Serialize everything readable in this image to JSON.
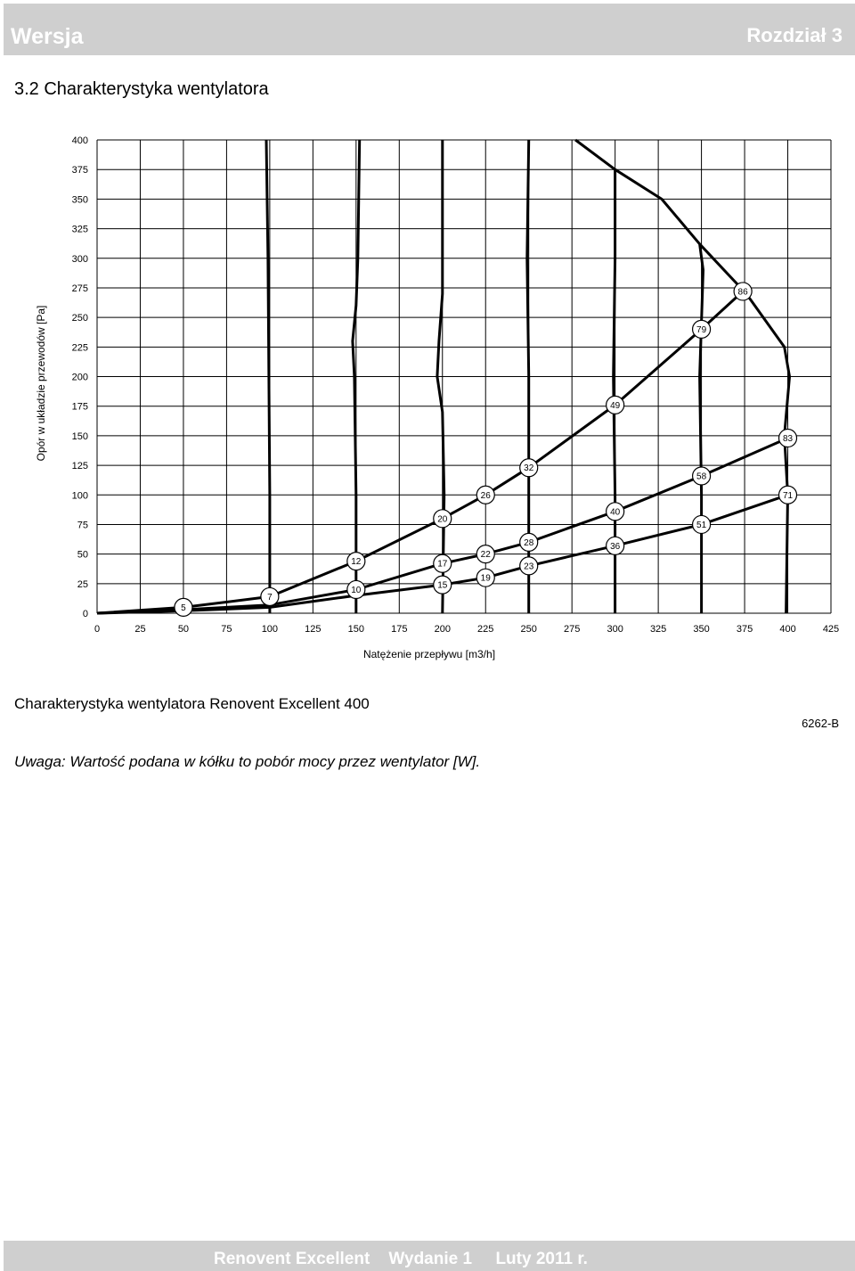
{
  "header": {
    "left": "Wersja",
    "right": "Rozdział 3"
  },
  "section_title": "3.2 Charakterystyka wentylatora",
  "caption": "Charakterystyka wentylatora Renovent Excellent 400",
  "code": "6262-B",
  "note": "Uwaga: Wartość podana w kółku to pobór mocy przez wentylator [W].",
  "footer": {
    "product": "Renovent Excellent",
    "edition": "Wydanie 1",
    "date": "Luty 2011 r."
  },
  "chart_data": {
    "type": "line",
    "title": "",
    "xlabel": "Natężenie przepływu [m3/h]",
    "ylabel": "Opór w układzie przewodów [Pa]",
    "xlim": [
      0,
      425
    ],
    "ylim": [
      0,
      400
    ],
    "xticks": [
      0,
      25,
      50,
      75,
      100,
      125,
      150,
      175,
      200,
      225,
      250,
      275,
      300,
      325,
      350,
      375,
      400,
      425
    ],
    "yticks": [
      0,
      25,
      50,
      75,
      100,
      125,
      150,
      175,
      200,
      225,
      250,
      275,
      300,
      325,
      350,
      375,
      400
    ],
    "grid": true,
    "fan_curves": [
      {
        "values": [
          [
            98,
            400
          ],
          [
            99,
            300
          ],
          [
            100,
            100
          ],
          [
            100,
            30
          ],
          [
            100,
            0
          ]
        ]
      },
      {
        "values": [
          [
            152,
            400
          ],
          [
            151,
            300
          ],
          [
            150,
            260
          ],
          [
            148,
            230
          ],
          [
            149,
            200
          ],
          [
            150,
            100
          ],
          [
            150,
            0
          ]
        ]
      },
      {
        "values": [
          [
            200,
            400
          ],
          [
            200,
            270
          ],
          [
            198,
            230
          ],
          [
            197,
            200
          ],
          [
            200,
            170
          ],
          [
            201,
            100
          ],
          [
            200,
            0
          ]
        ]
      },
      {
        "values": [
          [
            250,
            400
          ],
          [
            249,
            300
          ],
          [
            250,
            200
          ],
          [
            250,
            100
          ],
          [
            250,
            0
          ]
        ]
      },
      {
        "values": [
          [
            277,
            400
          ],
          [
            300,
            375
          ],
          [
            300,
            300
          ],
          [
            299,
            200
          ],
          [
            300,
            100
          ],
          [
            300,
            0
          ]
        ]
      },
      {
        "values": [
          [
            300,
            375
          ],
          [
            327,
            350
          ],
          [
            349,
            312
          ],
          [
            351,
            290
          ],
          [
            349,
            200
          ],
          [
            350,
            100
          ],
          [
            350,
            0
          ]
        ]
      },
      {
        "values": [
          [
            349,
            312
          ],
          [
            376,
            270
          ],
          [
            398,
            225
          ],
          [
            401,
            200
          ],
          [
            398,
            150
          ],
          [
            400,
            100
          ],
          [
            399,
            0
          ]
        ]
      }
    ],
    "system_curves": [
      {
        "values": [
          [
            0,
            0
          ],
          [
            50,
            5
          ],
          [
            100,
            14
          ],
          [
            150,
            44
          ],
          [
            200,
            80
          ],
          [
            225,
            100
          ],
          [
            250,
            123
          ],
          [
            300,
            176
          ],
          [
            350,
            240
          ],
          [
            374,
            272
          ]
        ]
      },
      {
        "values": [
          [
            0,
            0
          ],
          [
            50,
            3
          ],
          [
            100,
            7
          ],
          [
            150,
            20
          ],
          [
            200,
            42
          ],
          [
            225,
            50
          ],
          [
            250,
            60
          ],
          [
            300,
            86
          ],
          [
            350,
            116
          ],
          [
            400,
            148
          ]
        ]
      },
      {
        "values": [
          [
            0,
            0
          ],
          [
            50,
            2
          ],
          [
            100,
            5
          ],
          [
            150,
            15
          ],
          [
            200,
            24
          ],
          [
            225,
            30
          ],
          [
            250,
            40
          ],
          [
            300,
            57
          ],
          [
            350,
            75
          ],
          [
            400,
            100
          ]
        ]
      }
    ],
    "power_labels": [
      {
        "x": 50,
        "y": 5,
        "label": "5"
      },
      {
        "x": 100,
        "y": 14,
        "label": "7"
      },
      {
        "x": 150,
        "y": 44,
        "label": "12"
      },
      {
        "x": 150,
        "y": 20,
        "label": "10"
      },
      {
        "x": 200,
        "y": 80,
        "label": "20"
      },
      {
        "x": 200,
        "y": 42,
        "label": "17"
      },
      {
        "x": 200,
        "y": 24,
        "label": "15"
      },
      {
        "x": 225,
        "y": 100,
        "label": "26"
      },
      {
        "x": 225,
        "y": 50,
        "label": "22"
      },
      {
        "x": 225,
        "y": 30,
        "label": "19"
      },
      {
        "x": 250,
        "y": 123,
        "label": "32"
      },
      {
        "x": 250,
        "y": 60,
        "label": "28"
      },
      {
        "x": 250,
        "y": 40,
        "label": "23"
      },
      {
        "x": 300,
        "y": 176,
        "label": "49"
      },
      {
        "x": 300,
        "y": 86,
        "label": "40"
      },
      {
        "x": 300,
        "y": 57,
        "label": "36"
      },
      {
        "x": 350,
        "y": 240,
        "label": "79"
      },
      {
        "x": 350,
        "y": 116,
        "label": "58"
      },
      {
        "x": 350,
        "y": 75,
        "label": "51"
      },
      {
        "x": 374,
        "y": 272,
        "label": "86"
      },
      {
        "x": 400,
        "y": 148,
        "label": "83"
      },
      {
        "x": 400,
        "y": 100,
        "label": "71"
      }
    ]
  }
}
